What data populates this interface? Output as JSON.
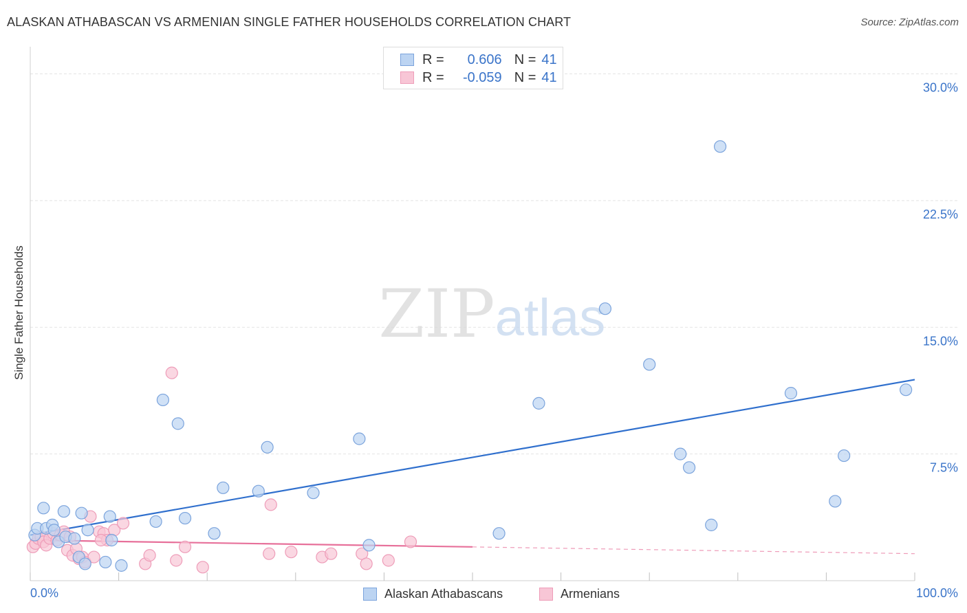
{
  "title": "ALASKAN ATHABASCAN VS ARMENIAN SINGLE FATHER HOUSEHOLDS CORRELATION CHART",
  "source": "Source: ZipAtlas.com",
  "watermark": {
    "zip": "ZIP",
    "atlas": "atlas"
  },
  "legend_top": {
    "r_label": "R =",
    "n_label": "N =",
    "rows": [
      {
        "r": "0.606",
        "n": "41"
      },
      {
        "r": "-0.059",
        "n": "41"
      }
    ]
  },
  "colors": {
    "blue_fill": "#bcd4f2",
    "blue_stroke": "#7aa3dc",
    "blue_line": "#2f6fcd",
    "pink_fill": "#f8c6d6",
    "pink_stroke": "#ee9cb8",
    "pink_line": "#e7709a",
    "tick_label": "#3a74c9",
    "grid": "#e3e3e3"
  },
  "chart_data": {
    "type": "scatter",
    "title": "ALASKAN ATHABASCAN VS ARMENIAN SINGLE FATHER HOUSEHOLDS CORRELATION CHART",
    "xlabel": "",
    "ylabel": "Single Father Households",
    "xlim": [
      0,
      100
    ],
    "ylim": [
      0,
      31.2
    ],
    "x_tick_labels": [
      "0.0%",
      "100.0%"
    ],
    "y_ticks": [
      7.5,
      15.0,
      22.5,
      30.0
    ],
    "y_tick_labels": [
      "7.5%",
      "15.0%",
      "22.5%",
      "30.0%"
    ],
    "grid": true,
    "legend_position": "bottom-center",
    "series": [
      {
        "name": "Alaskan Athabascans",
        "color": "#7aa3dc",
        "trend": {
          "x": [
            0,
            100
          ],
          "y": [
            2.7,
            11.9
          ],
          "dashed_from": null
        },
        "points": [
          [
            0.5,
            2.7
          ],
          [
            0.8,
            3.1
          ],
          [
            1.5,
            4.3
          ],
          [
            1.8,
            3.1
          ],
          [
            2.5,
            3.3
          ],
          [
            2.7,
            3.0
          ],
          [
            3.2,
            2.3
          ],
          [
            3.8,
            4.1
          ],
          [
            4.0,
            2.6
          ],
          [
            5.0,
            2.5
          ],
          [
            5.5,
            1.4
          ],
          [
            5.8,
            4.0
          ],
          [
            6.2,
            1.0
          ],
          [
            6.5,
            3.0
          ],
          [
            8.5,
            1.1
          ],
          [
            9.0,
            3.8
          ],
          [
            9.2,
            2.4
          ],
          [
            10.3,
            0.9
          ],
          [
            14.2,
            3.5
          ],
          [
            15.0,
            10.7
          ],
          [
            16.7,
            9.3
          ],
          [
            17.5,
            3.7
          ],
          [
            20.8,
            2.8
          ],
          [
            21.8,
            5.5
          ],
          [
            25.8,
            5.3
          ],
          [
            26.8,
            7.9
          ],
          [
            32.0,
            5.2
          ],
          [
            37.2,
            8.4
          ],
          [
            38.3,
            2.1
          ],
          [
            53.0,
            2.8
          ],
          [
            57.5,
            10.5
          ],
          [
            65.0,
            16.1
          ],
          [
            70.0,
            12.8
          ],
          [
            73.5,
            7.5
          ],
          [
            74.5,
            6.7
          ],
          [
            77.0,
            3.3
          ],
          [
            78.0,
            25.7
          ],
          [
            86.0,
            11.1
          ],
          [
            91.0,
            4.7
          ],
          [
            92.0,
            7.4
          ],
          [
            99.0,
            11.3
          ]
        ]
      },
      {
        "name": "Armenians",
        "color": "#ee9cb8",
        "trend": {
          "x": [
            0,
            100
          ],
          "y": [
            2.4,
            1.6
          ],
          "dashed_from": 50
        },
        "points": [
          [
            0.3,
            2.0
          ],
          [
            0.6,
            2.2
          ],
          [
            0.9,
            2.5
          ],
          [
            1.2,
            2.6
          ],
          [
            1.5,
            2.3
          ],
          [
            1.8,
            2.1
          ],
          [
            2.2,
            2.5
          ],
          [
            2.6,
            2.8
          ],
          [
            3.0,
            2.4
          ],
          [
            3.4,
            2.7
          ],
          [
            3.8,
            2.9
          ],
          [
            4.2,
            1.8
          ],
          [
            4.5,
            2.6
          ],
          [
            4.8,
            1.5
          ],
          [
            5.2,
            1.9
          ],
          [
            5.5,
            1.3
          ],
          [
            5.9,
            1.4
          ],
          [
            6.2,
            1.1
          ],
          [
            6.8,
            3.8
          ],
          [
            7.2,
            1.4
          ],
          [
            7.8,
            2.9
          ],
          [
            8.3,
            2.8
          ],
          [
            8.7,
            2.4
          ],
          [
            9.5,
            3.0
          ],
          [
            10.5,
            3.4
          ],
          [
            13.0,
            1.0
          ],
          [
            13.5,
            1.5
          ],
          [
            16.0,
            12.3
          ],
          [
            16.5,
            1.2
          ],
          [
            17.5,
            2.0
          ],
          [
            19.5,
            0.8
          ],
          [
            27.0,
            1.6
          ],
          [
            27.2,
            4.5
          ],
          [
            29.5,
            1.7
          ],
          [
            33.0,
            1.4
          ],
          [
            34.0,
            1.6
          ],
          [
            37.5,
            1.6
          ],
          [
            38.0,
            1.0
          ],
          [
            40.5,
            1.2
          ],
          [
            43.0,
            2.3
          ],
          [
            8.0,
            2.4
          ]
        ]
      }
    ]
  },
  "legend_bottom": [
    "Alaskan Athabascans",
    "Armenians"
  ]
}
